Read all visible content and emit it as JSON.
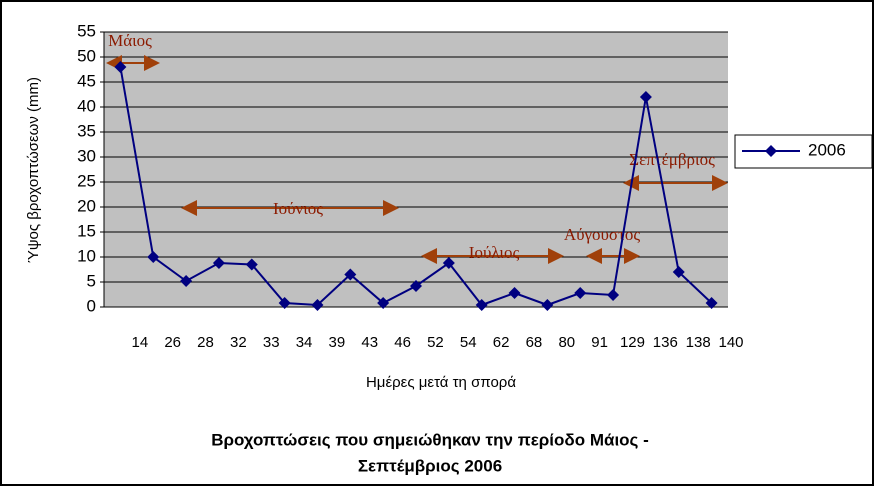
{
  "chart_data": {
    "type": "line",
    "title": [
      "Βροχοπτώσεις που σημειώθηκαν την περίοδο Μάιος -",
      "Σεπτέμβριος 2006"
    ],
    "x_label": "Ημέρες μετά τη σπορά",
    "y_label": "Ύψος βροχοπτώσεων (mm)",
    "categories": [
      "14",
      "26",
      "28",
      "32",
      "33",
      "34",
      "39",
      "43",
      "46",
      "52",
      "54",
      "62",
      "68",
      "80",
      "91",
      "129",
      "136",
      "138",
      "140"
    ],
    "series": [
      {
        "name": "2006",
        "color": "#000080",
        "values": [
          48,
          10,
          5.2,
          8.8,
          8.5,
          0.8,
          0.4,
          6.5,
          0.8,
          4.2,
          8.8,
          0.4,
          2.8,
          0.4,
          2.8,
          2.4,
          42,
          7,
          0.8
        ]
      }
    ],
    "ylim": [
      0,
      55
    ],
    "yticks": [
      0,
      5,
      10,
      15,
      20,
      25,
      30,
      35,
      40,
      45,
      50,
      55
    ],
    "grid": true,
    "legend": "right",
    "annotations": [
      "Μάιος",
      "Ιούνιος",
      "Ιούλιος",
      "Αύγουστος",
      "Σεπτέμβριος"
    ]
  }
}
